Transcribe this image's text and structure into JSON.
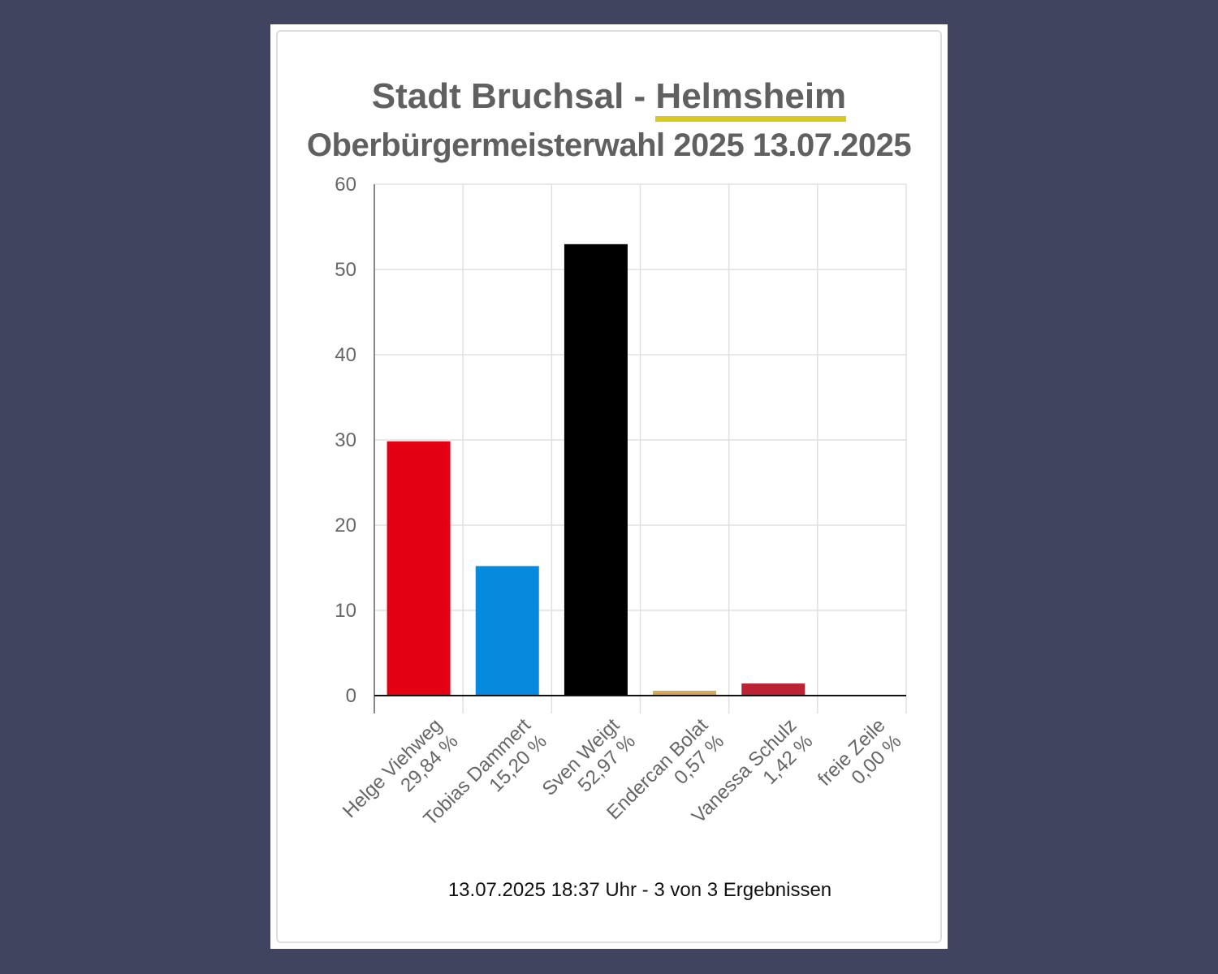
{
  "title": {
    "prefix": "Stadt Bruchsal - ",
    "place": "Helmsheim",
    "subtitle": "Oberbürgermeisterwahl 2025 13.07.2025"
  },
  "footer": "13.07.2025 18:37 Uhr - 3 von 3 Ergebnissen",
  "colors": {
    "background": "#40445f",
    "underline": "#d9c820",
    "grid": "#e0e0e0"
  },
  "chart_data": {
    "type": "bar",
    "title": "Stadt Bruchsal - Helmsheim",
    "subtitle": "Oberbürgermeisterwahl 2025 13.07.2025",
    "xlabel": "",
    "ylabel": "",
    "ylim": [
      0,
      60
    ],
    "yticks": [
      0,
      10,
      20,
      30,
      40,
      50,
      60
    ],
    "grid": true,
    "categories": [
      {
        "name": "Helge Viehweg",
        "label": "29,84 %",
        "value": 29.84,
        "color": "#e30013"
      },
      {
        "name": "Tobias Dammert",
        "label": "15,20 %",
        "value": 15.2,
        "color": "#078add"
      },
      {
        "name": "Sven Weigt",
        "label": "52,97 %",
        "value": 52.97,
        "color": "#000000"
      },
      {
        "name": "Endercan Bolat",
        "label": "0,57 %",
        "value": 0.57,
        "color": "#d4aa5a"
      },
      {
        "name": "Vanessa Schulz",
        "label": "1,42 %",
        "value": 1.42,
        "color": "#bb2233"
      },
      {
        "name": "freie Zeile",
        "label": "0,00 %",
        "value": 0.0,
        "color": "#999999"
      }
    ]
  }
}
